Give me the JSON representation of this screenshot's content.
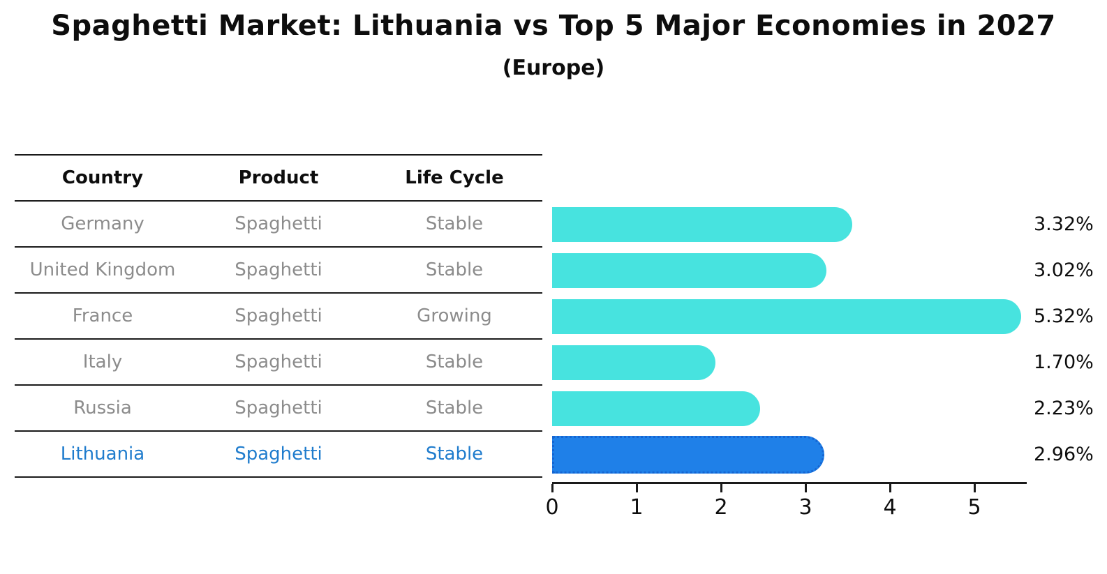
{
  "chart": {
    "title": "Spaghetti Market: Lithuania vs Top 5 Major Economies in 2027",
    "subtitle": "(Europe)"
  },
  "table": {
    "headers": [
      "Country",
      "Product",
      "Life Cycle"
    ],
    "rows": [
      {
        "country": "Germany",
        "product": "Spaghetti",
        "life_cycle": "Stable",
        "highlighted": false
      },
      {
        "country": "United Kingdom",
        "product": "Spaghetti",
        "life_cycle": "Stable",
        "highlighted": false
      },
      {
        "country": "France",
        "product": "Spaghetti",
        "life_cycle": "Growing",
        "highlighted": false
      },
      {
        "country": "Italy",
        "product": "Spaghetti",
        "life_cycle": "Stable",
        "highlighted": false
      },
      {
        "country": "Russia",
        "product": "Spaghetti",
        "life_cycle": "Stable",
        "highlighted": false
      },
      {
        "country": "Lithuania",
        "product": "Spaghetti",
        "life_cycle": "Stable",
        "highlighted": true
      }
    ]
  },
  "chart_data": {
    "type": "bar",
    "orientation": "horizontal",
    "title": "Spaghetti Market: Lithuania vs Top 5 Major Economies in 2027",
    "subtitle": "(Europe)",
    "categories": [
      "Germany",
      "United Kingdom",
      "France",
      "Italy",
      "Russia",
      "Lithuania"
    ],
    "values": [
      3.32,
      3.02,
      5.32,
      1.7,
      2.23,
      2.96
    ],
    "value_labels": [
      "3.32%",
      "3.02%",
      "5.32%",
      "1.70%",
      "2.23%",
      "2.96%"
    ],
    "x_ticks": [
      "0",
      "1",
      "2",
      "3",
      "4",
      "5"
    ],
    "xlim": [
      0,
      5.6
    ],
    "grid": false,
    "legend": false,
    "highlight_index": 5,
    "bar_color": "#47e3df",
    "highlight_bar_color": "#1f80e8",
    "highlight_border_color": "#1565d2",
    "highlight_text_color": "#1f7ccd",
    "muted_text_color": "#8c8c8c",
    "axis_color": "#1a1a1a"
  }
}
